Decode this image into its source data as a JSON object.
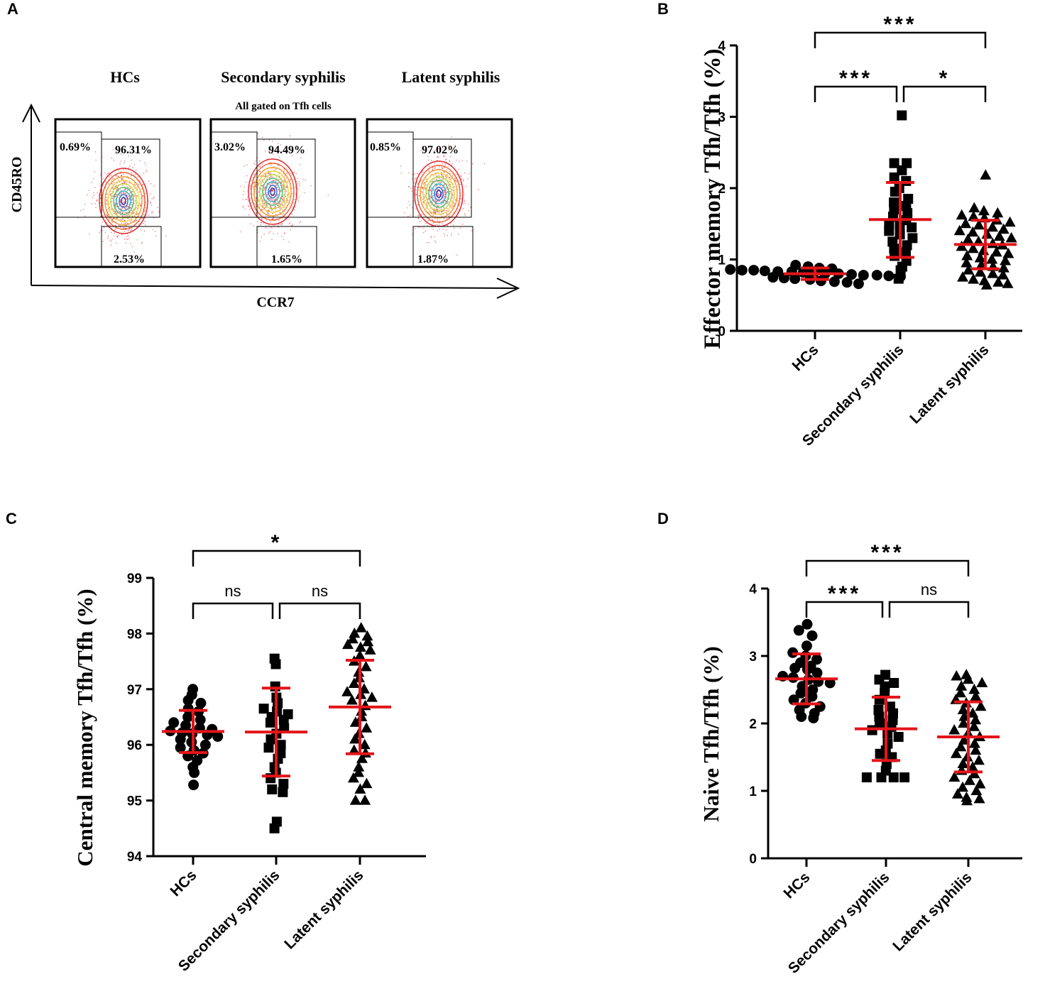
{
  "panel_a": {
    "letter": "A",
    "subtitle": "All gated on Tfh cells",
    "x_axis_label": "CCR7",
    "y_axis_label": "CD45RO",
    "plots": [
      {
        "group": "HCs",
        "top_left": "0.69%",
        "top_right": "96.31%",
        "bottom_right": "2.53%"
      },
      {
        "group": "Secondary syphilis",
        "top_left": "3.02%",
        "top_right": "94.49%",
        "bottom_right": "1.65%"
      },
      {
        "group": "Latent syphilis",
        "top_left": "0.85%",
        "top_right": "97.02%",
        "bottom_right": "1.87%"
      }
    ]
  },
  "colors": {
    "points": "#000000",
    "error_bars": "#e3151a",
    "contour_outer": "#e0202a"
  },
  "chart_data": [
    {
      "panel": "B",
      "type": "scatter",
      "ylabel": "Effector memory Tfh/Tfh (%)",
      "categories": [
        "HCs",
        "Secondary syphilis",
        "Latent syphilis"
      ],
      "yticks": [
        "0",
        "1",
        "2",
        "3",
        "4"
      ],
      "ylim": [
        0,
        4
      ],
      "markers": [
        "circle",
        "square",
        "triangle"
      ],
      "series": [
        {
          "name": "HCs",
          "mean": 0.8,
          "sd_low": 0.72,
          "sd_high": 0.88,
          "points": [
            0.92,
            0.9,
            0.88,
            0.87,
            0.86,
            0.85,
            0.85,
            0.84,
            0.83,
            0.83,
            0.82,
            0.81,
            0.8,
            0.8,
            0.79,
            0.78,
            0.78,
            0.77,
            0.76,
            0.75,
            0.74,
            0.73,
            0.72,
            0.7,
            0.69,
            0.68,
            0.66
          ]
        },
        {
          "name": "Secondary syphilis",
          "mean": 1.56,
          "sd_low": 1.03,
          "sd_high": 2.08,
          "points": [
            3.02,
            2.35,
            2.35,
            2.25,
            2.15,
            2.1,
            2.0,
            1.95,
            1.85,
            1.8,
            1.75,
            1.7,
            1.65,
            1.6,
            1.55,
            1.5,
            1.48,
            1.45,
            1.4,
            1.35,
            1.3,
            1.25,
            1.2,
            1.15,
            1.1,
            1.05,
            0.98,
            0.9,
            0.85,
            0.73
          ]
        },
        {
          "name": "Latent syphilis",
          "mean": 1.21,
          "sd_low": 0.87,
          "sd_high": 1.55,
          "points": [
            2.18,
            1.72,
            1.68,
            1.65,
            1.62,
            1.6,
            1.58,
            1.55,
            1.52,
            1.5,
            1.48,
            1.45,
            1.42,
            1.4,
            1.38,
            1.35,
            1.32,
            1.3,
            1.28,
            1.25,
            1.22,
            1.2,
            1.18,
            1.15,
            1.12,
            1.1,
            1.08,
            1.05,
            1.02,
            1.0,
            0.98,
            0.95,
            0.92,
            0.9,
            0.88,
            0.85,
            0.82,
            0.8,
            0.78,
            0.75,
            0.72,
            0.7,
            0.68,
            0.66,
            0.64
          ]
        }
      ],
      "comparisons": [
        {
          "from": 0,
          "to": 2,
          "label": "***",
          "level": 2
        },
        {
          "from": 0,
          "to": 1,
          "label": "***",
          "level": 1
        },
        {
          "from": 1,
          "to": 2,
          "label": "*",
          "level": 1
        }
      ]
    },
    {
      "panel": "C",
      "type": "scatter",
      "ylabel": "Central memory Tfh/Tfh (%)",
      "categories": [
        "HCs",
        "Secondary syphilis",
        "Latent syphilis"
      ],
      "yticks": [
        "94",
        "95",
        "96",
        "97",
        "98",
        "99"
      ],
      "ylim": [
        94,
        99
      ],
      "markers": [
        "circle",
        "square",
        "triangle"
      ],
      "series": [
        {
          "name": "HCs",
          "mean": 96.24,
          "sd_low": 95.86,
          "sd_high": 96.62,
          "points": [
            97.0,
            96.9,
            96.8,
            96.75,
            96.65,
            96.6,
            96.5,
            96.45,
            96.4,
            96.35,
            96.3,
            96.28,
            96.25,
            96.22,
            96.2,
            96.18,
            96.15,
            96.1,
            96.05,
            96.0,
            95.95,
            95.9,
            95.85,
            95.8,
            95.72,
            95.6,
            95.5,
            95.28
          ]
        },
        {
          "name": "Secondary syphilis",
          "mean": 96.23,
          "sd_low": 95.44,
          "sd_high": 97.02,
          "points": [
            97.55,
            97.45,
            97.05,
            96.85,
            96.75,
            96.65,
            96.6,
            96.55,
            96.5,
            96.45,
            96.4,
            96.3,
            96.2,
            96.1,
            96.0,
            95.95,
            95.85,
            95.75,
            95.6,
            95.5,
            95.4,
            95.3,
            95.2,
            95.15,
            94.62,
            94.5
          ]
        },
        {
          "name": "Latent syphilis",
          "mean": 96.68,
          "sd_low": 95.84,
          "sd_high": 97.52,
          "points": [
            98.1,
            98.0,
            97.95,
            97.9,
            97.85,
            97.8,
            97.75,
            97.7,
            97.6,
            97.5,
            97.4,
            97.3,
            97.2,
            97.1,
            97.0,
            96.95,
            96.9,
            96.85,
            96.8,
            96.7,
            96.6,
            96.5,
            96.4,
            96.3,
            96.2,
            96.1,
            96.0,
            95.9,
            95.85,
            95.75,
            95.6,
            95.5,
            95.4,
            95.3,
            95.2,
            95.0,
            95.0
          ]
        }
      ],
      "comparisons": [
        {
          "from": 0,
          "to": 2,
          "label": "*",
          "level": 2
        },
        {
          "from": 0,
          "to": 1,
          "label": "ns",
          "level": 1
        },
        {
          "from": 1,
          "to": 2,
          "label": "ns",
          "level": 1
        }
      ]
    },
    {
      "panel": "D",
      "type": "scatter",
      "ylabel": "Naive Tfh/Tfh (%)",
      "categories": [
        "HCs",
        "Secondary syphilis",
        "Latent syphilis"
      ],
      "yticks": [
        "0",
        "1",
        "2",
        "3",
        "4"
      ],
      "ylim": [
        0,
        4
      ],
      "markers": [
        "circle",
        "square",
        "triangle"
      ],
      "series": [
        {
          "name": "HCs",
          "mean": 2.66,
          "sd_low": 2.29,
          "sd_high": 3.03,
          "points": [
            3.47,
            3.38,
            3.3,
            3.15,
            3.05,
            3.0,
            2.95,
            2.9,
            2.85,
            2.82,
            2.8,
            2.75,
            2.7,
            2.68,
            2.65,
            2.62,
            2.6,
            2.55,
            2.5,
            2.45,
            2.4,
            2.35,
            2.3,
            2.25,
            2.2,
            2.15,
            2.1,
            2.08
          ]
        },
        {
          "name": "Secondary syphilis",
          "mean": 1.92,
          "sd_low": 1.45,
          "sd_high": 2.39,
          "points": [
            2.72,
            2.65,
            2.6,
            2.55,
            2.45,
            2.35,
            2.25,
            2.2,
            2.15,
            2.1,
            2.05,
            2.0,
            1.95,
            1.9,
            1.85,
            1.8,
            1.7,
            1.6,
            1.55,
            1.5,
            1.4,
            1.3,
            1.2,
            1.2,
            1.2,
            1.2
          ]
        },
        {
          "name": "Latent syphilis",
          "mean": 1.8,
          "sd_low": 1.28,
          "sd_high": 2.32,
          "points": [
            2.72,
            2.7,
            2.65,
            2.6,
            2.55,
            2.5,
            2.45,
            2.4,
            2.35,
            2.3,
            2.25,
            2.2,
            2.15,
            2.1,
            2.05,
            2.0,
            1.95,
            1.9,
            1.85,
            1.8,
            1.75,
            1.7,
            1.65,
            1.6,
            1.55,
            1.5,
            1.45,
            1.4,
            1.35,
            1.3,
            1.25,
            1.2,
            1.15,
            1.1,
            1.05,
            1.0,
            0.95,
            0.9,
            0.88,
            0.85
          ]
        }
      ],
      "comparisons": [
        {
          "from": 0,
          "to": 2,
          "label": "***",
          "level": 2
        },
        {
          "from": 0,
          "to": 1,
          "label": "***",
          "level": 1
        },
        {
          "from": 1,
          "to": 2,
          "label": "ns",
          "level": 1
        }
      ]
    }
  ]
}
